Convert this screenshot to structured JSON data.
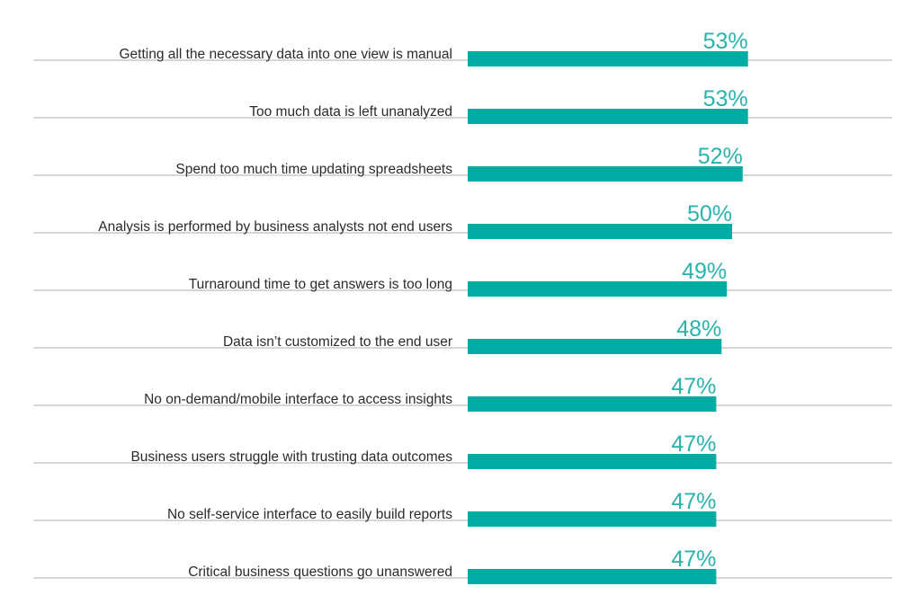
{
  "chart_data": {
    "type": "bar",
    "orientation": "horizontal",
    "categories": [
      "Getting all the necessary data into one view is manual",
      "Too much data is left unanalyzed",
      "Spend too much time updating spreadsheets",
      "Analysis is performed by business analysts not end users",
      "Turnaround time to get answers is too long",
      "Data isn’t customized to the end user",
      "No on-demand/mobile interface to access insights",
      "Business users struggle with trusting data outcomes",
      "No self-service interface to easily build reports",
      "Critical business questions go unanswered"
    ],
    "values": [
      53,
      53,
      52,
      50,
      49,
      48,
      47,
      47,
      47,
      47
    ],
    "value_labels": [
      "53%",
      "53%",
      "52%",
      "50%",
      "49%",
      "48%",
      "47%",
      "47%",
      "47%",
      "47%"
    ],
    "value_suffix": "%",
    "xlim": [
      0,
      100
    ],
    "grid": false,
    "legend": "none",
    "colors": {
      "bar": "#00ada4",
      "value_text": "#2ab3ac",
      "label_text": "#2b2b2b",
      "divider": "#c9c9c9"
    }
  }
}
